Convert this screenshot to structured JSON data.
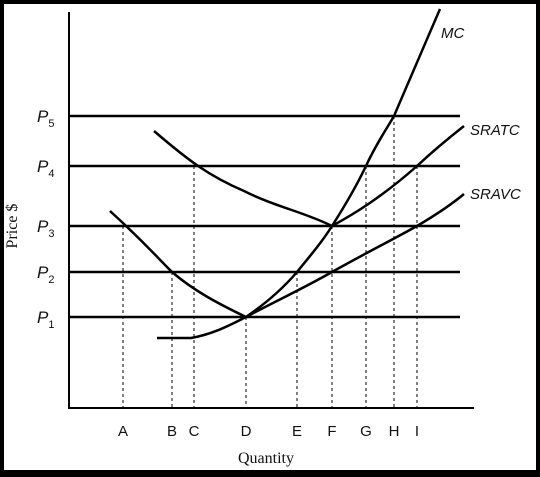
{
  "chart_data": {
    "type": "line",
    "xlabel": "Quantity",
    "ylabel": "Price $",
    "quantity_labels": [
      "A",
      "B",
      "C",
      "D",
      "E",
      "F",
      "G",
      "H",
      "I"
    ],
    "price_levels": [
      {
        "base": "P",
        "sub": "1"
      },
      {
        "base": "P",
        "sub": "2"
      },
      {
        "base": "P",
        "sub": "3"
      },
      {
        "base": "P",
        "sub": "4"
      },
      {
        "base": "P",
        "sub": "5"
      }
    ],
    "curve_labels": {
      "mc": "MC",
      "sratc": "SRATC",
      "sravc": "SRAVC"
    },
    "series": [
      {
        "name": "MC",
        "points": [
          [
            "",
            ""
          ],
          [
            "C",
            ""
          ],
          [
            "D",
            "P1"
          ],
          [
            "E",
            "P2"
          ],
          [
            "F",
            "P3"
          ],
          [
            "G",
            "P4"
          ],
          [
            "H",
            "P5"
          ]
        ]
      },
      {
        "name": "SRATC",
        "points": [
          [
            "C",
            "P4"
          ],
          [
            "F",
            "P3"
          ],
          [
            "I",
            "P4"
          ]
        ]
      },
      {
        "name": "SRAVC",
        "points": [
          [
            "A",
            "P3"
          ],
          [
            "B",
            "P2"
          ],
          [
            "D",
            "P1"
          ],
          [
            "F",
            "P2"
          ],
          [
            "I",
            "P3"
          ]
        ]
      }
    ],
    "grid": false,
    "legend": "none"
  }
}
